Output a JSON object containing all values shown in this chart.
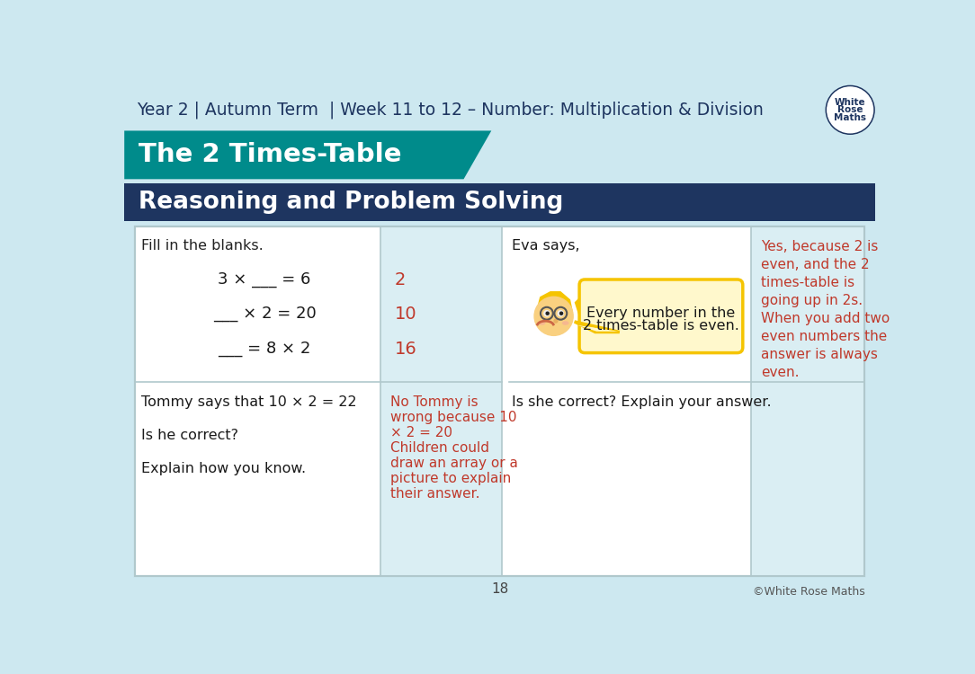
{
  "bg_color": "#cde8f0",
  "teal_color": "#008B8B",
  "navy_color": "#1e3560",
  "white": "#ffffff",
  "red_color": "#c0392b",
  "light_blue_cell": "#daeef3",
  "light_blue_right": "#daeef3",
  "border_color": "#b0c8cc",
  "header_text": "Year 2 | Autumn Term  | Week 11 to 12 – Number: Multiplication & Division",
  "teal_title": "The 2 Times-Table",
  "navy_subtitle": "Reasoning and Problem Solving",
  "q1_left": "Fill in the blanks.",
  "q1_eq1": "3 × ___ = 6",
  "q1_eq2": "___ × 2 = 20",
  "q1_eq3": "___ = 8 × 2",
  "q1_ans1": "2",
  "q1_ans2": "10",
  "q1_ans3": "16",
  "q2_left1": "Tommy says that 10 × 2 = 22",
  "q2_left2": "Is he correct?",
  "q2_left3": "Explain how you know.",
  "q2_right_lines": [
    "No Tommy is",
    "wrong because 10",
    "× 2 = 20",
    "Children could",
    "draw an array or a",
    "picture to explain",
    "their answer."
  ],
  "q3_left": "Eva says,",
  "q3_bubble_line1": "Every number in the",
  "q3_bubble_line2": "2 times-table is even.",
  "q3_right2": "Is she correct? Explain your answer.",
  "q4_right_lines": [
    "Yes, because 2 is",
    "even, and the 2",
    "times-table is",
    "going up in 2s.",
    "When you add two",
    "even numbers the",
    "answer is always",
    "even."
  ],
  "page_num": "18",
  "copyright": "©White Rose Maths",
  "hair_color": "#f5c400",
  "skin_color": "#f9d080",
  "bubble_fill": "#fff8cc",
  "bubble_border": "#f5c400"
}
